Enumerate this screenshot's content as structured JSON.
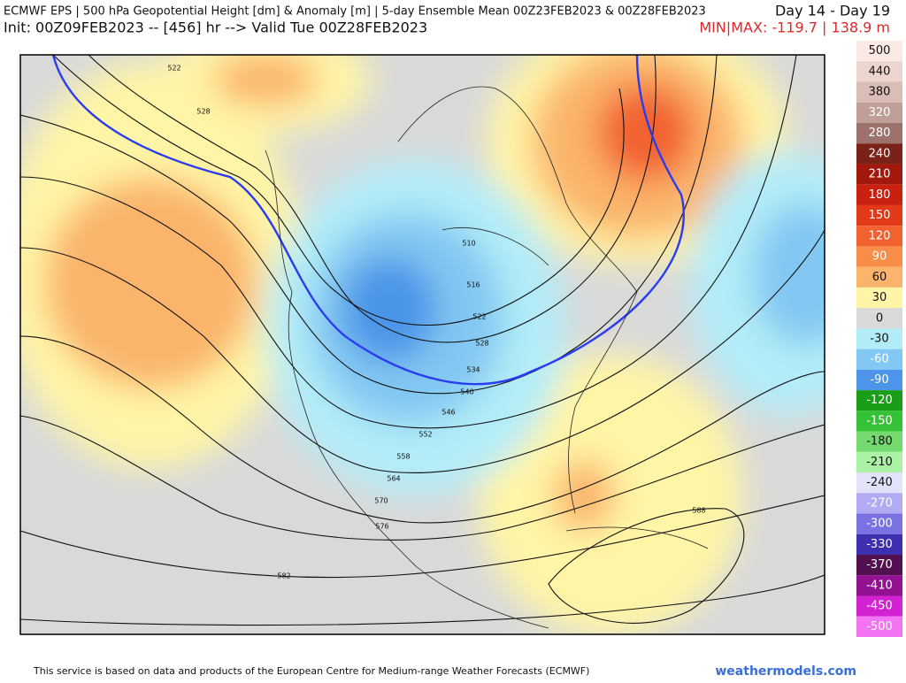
{
  "header": {
    "title": "ECMWF EPS | 500 hPa Geopotential Height [dm] & Anomaly [m] | 5-day Ensemble Mean 00Z23FEB2023 & 00Z28FEB2023",
    "init": "Init: 00Z09FEB2023 -- [456] hr --> Valid Tue 00Z28FEB2023",
    "days": "Day 14 - Day 19",
    "minmax": "MIN|MAX: -119.7 | 138.9 m"
  },
  "contour_labels": [
    522,
    528,
    510,
    516,
    522,
    528,
    534,
    540,
    546,
    552,
    558,
    564,
    570,
    576,
    582,
    588
  ],
  "legend": {
    "entries": [
      {
        "label": 500,
        "color": "#fbe9e4"
      },
      {
        "label": 440,
        "color": "#ecd5cf"
      },
      {
        "label": 380,
        "color": "#d9bdb6"
      },
      {
        "label": 320,
        "color": "#c09f98"
      },
      {
        "label": 280,
        "color": "#9c726c"
      },
      {
        "label": 240,
        "color": "#7a2218"
      },
      {
        "label": 210,
        "color": "#a3180c"
      },
      {
        "label": 180,
        "color": "#c92010"
      },
      {
        "label": 150,
        "color": "#e23a18"
      },
      {
        "label": 120,
        "color": "#f26230"
      },
      {
        "label": 90,
        "color": "#f88d4a"
      },
      {
        "label": 60,
        "color": "#fbb46c"
      },
      {
        "label": 30,
        "color": "#fff5a6"
      },
      {
        "label": 0,
        "color": "#d9d9d9"
      },
      {
        "label": -30,
        "color": "#b3ecf8"
      },
      {
        "label": -60,
        "color": "#82c8f2"
      },
      {
        "label": -90,
        "color": "#4c95e8"
      },
      {
        "label": -120,
        "color": "#1a9e1a"
      },
      {
        "label": -150,
        "color": "#36c236"
      },
      {
        "label": -180,
        "color": "#74da70"
      },
      {
        "label": -210,
        "color": "#abf2a4"
      },
      {
        "label": -240,
        "color": "#e2e2f8"
      },
      {
        "label": -270,
        "color": "#b2aaf2"
      },
      {
        "label": -300,
        "color": "#7a72e2"
      },
      {
        "label": -330,
        "color": "#3e2eb0"
      },
      {
        "label": -370,
        "color": "#521050"
      },
      {
        "label": -410,
        "color": "#921292"
      },
      {
        "label": -450,
        "color": "#d222d2"
      },
      {
        "label": -500,
        "color": "#f274f2"
      }
    ]
  },
  "footer": {
    "notice": "This service is based on data and products of the European Centre for Medium-range Weather Forecasts (ECMWF)",
    "site": "weathermodels.com"
  }
}
